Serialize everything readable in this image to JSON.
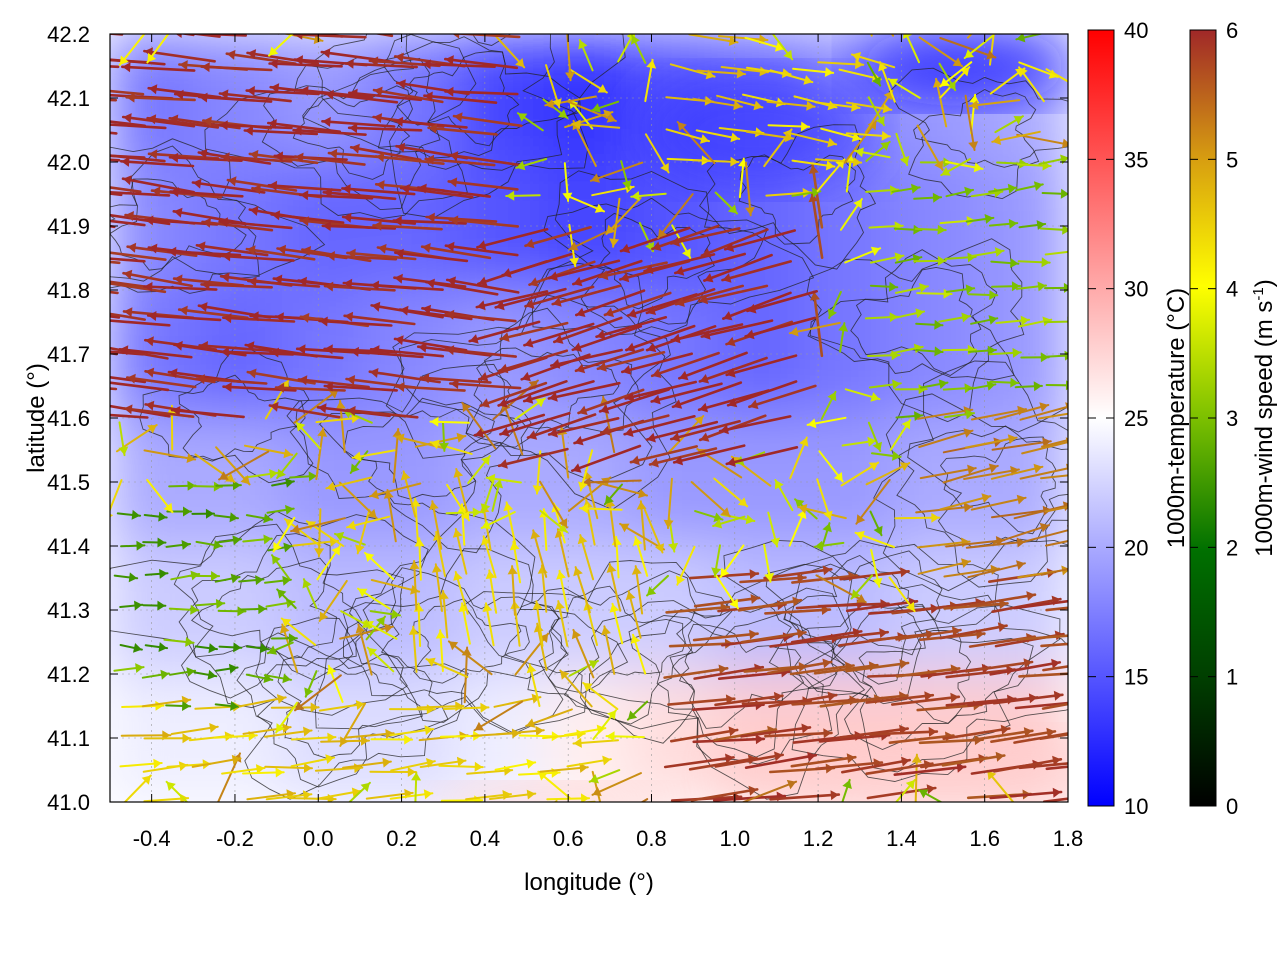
{
  "chart_data": {
    "type": "heatmap",
    "title": "",
    "xlabel": "longitude (°)",
    "ylabel": "latitude (°)",
    "xlim": [
      -0.5,
      1.8
    ],
    "ylim": [
      41.0,
      42.2
    ],
    "x_ticks": [
      "-0.4",
      "-0.2",
      "0.0",
      "0.2",
      "0.4",
      "0.6",
      "0.8",
      "1.0",
      "1.2",
      "1.4",
      "1.6",
      "1.8"
    ],
    "x_tick_values": [
      -0.4,
      -0.2,
      0.0,
      0.2,
      0.4,
      0.6,
      0.8,
      1.0,
      1.2,
      1.4,
      1.6,
      1.8
    ],
    "y_ticks": [
      "41.0",
      "41.1",
      "41.2",
      "41.3",
      "41.4",
      "41.5",
      "41.6",
      "41.7",
      "41.8",
      "41.9",
      "42.0",
      "42.1",
      "42.2"
    ],
    "y_tick_values": [
      41.0,
      41.1,
      41.2,
      41.3,
      41.4,
      41.5,
      41.6,
      41.7,
      41.8,
      41.9,
      42.0,
      42.1,
      42.2
    ],
    "grid": true,
    "temperature_colorbar": {
      "label": "1000m-temperature (°C)",
      "range": [
        10,
        40
      ],
      "ticks": [
        "10",
        "15",
        "20",
        "25",
        "30",
        "35",
        "40"
      ],
      "tick_values": [
        10,
        15,
        20,
        25,
        30,
        35,
        40
      ],
      "colors": [
        "#0000ff",
        "#ffffff",
        "#ff0000"
      ]
    },
    "wind_colorbar": {
      "label_main": "1000m-wind speed (m s",
      "label_sup": "-1",
      "label_end": ")",
      "range": [
        0,
        6
      ],
      "ticks": [
        "0",
        "1",
        "2",
        "3",
        "4",
        "5",
        "6"
      ],
      "tick_values": [
        0,
        1,
        2,
        3,
        4,
        5,
        6
      ],
      "colors": [
        "#000000",
        "#006400",
        "#7cc000",
        "#ffff00",
        "#d4a010",
        "#b06020",
        "#a02828"
      ]
    },
    "temperature_field": {
      "description_values_degC": [
        [
          17,
          18,
          19,
          17,
          14,
          13,
          15,
          16,
          18,
          19,
          20
        ],
        [
          18,
          17,
          16,
          16,
          15,
          14,
          15,
          16,
          17,
          18,
          19
        ],
        [
          17,
          16,
          17,
          18,
          19,
          18,
          17,
          16,
          17,
          18,
          19
        ],
        [
          20,
          20,
          19,
          19,
          20,
          20,
          19,
          19,
          19,
          20,
          20
        ],
        [
          22,
          22,
          21,
          21,
          22,
          22,
          22,
          21,
          21,
          22,
          22
        ],
        [
          24,
          24,
          23,
          23,
          24,
          26,
          27,
          28,
          28,
          28,
          28
        ]
      ]
    },
    "wind_regions": [
      {
        "lon": [
          -0.5,
          0.5
        ],
        "lat": [
          41.6,
          42.2
        ],
        "u": -5.6,
        "v": 0.6,
        "speed": 6
      },
      {
        "lon": [
          0.5,
          1.2
        ],
        "lat": [
          41.55,
          41.9
        ],
        "u": -5.0,
        "v": -1.5,
        "speed": 6
      },
      {
        "lon": [
          1.0,
          1.25
        ],
        "lat": [
          41.6,
          41.9
        ],
        "u": -1.0,
        "v": 5.0,
        "speed": 5.5
      },
      {
        "lon": [
          0.8,
          1.8
        ],
        "lat": [
          41.0,
          41.35
        ],
        "u": 5.5,
        "v": 0.6,
        "speed": 5.5
      },
      {
        "lon": [
          -0.5,
          -0.1
        ],
        "lat": [
          41.15,
          41.5
        ],
        "u": 2.0,
        "v": 0,
        "speed": 1.8
      },
      {
        "lon": [
          -0.5,
          0.6
        ],
        "lat": [
          41.0,
          41.15
        ],
        "u": 3.5,
        "v": 0.3,
        "speed": 3.5
      },
      {
        "lon": [
          0.2,
          0.8
        ],
        "lat": [
          41.2,
          41.45
        ],
        "u": -0.5,
        "v": 3.0,
        "speed": 3.5
      },
      {
        "lon": [
          1.3,
          1.8
        ],
        "lat": [
          41.6,
          42.0
        ],
        "u": 2.5,
        "v": 0.2,
        "speed": 2.2
      },
      {
        "lon": [
          0.8,
          1.3
        ],
        "lat": [
          42.0,
          42.2
        ],
        "u": 3.0,
        "v": -0.5,
        "speed": 3.5
      },
      {
        "lon": [
          1.4,
          1.8
        ],
        "lat": [
          41.35,
          41.6
        ],
        "u": 4.0,
        "v": 0.8,
        "speed": 4.5
      }
    ]
  }
}
